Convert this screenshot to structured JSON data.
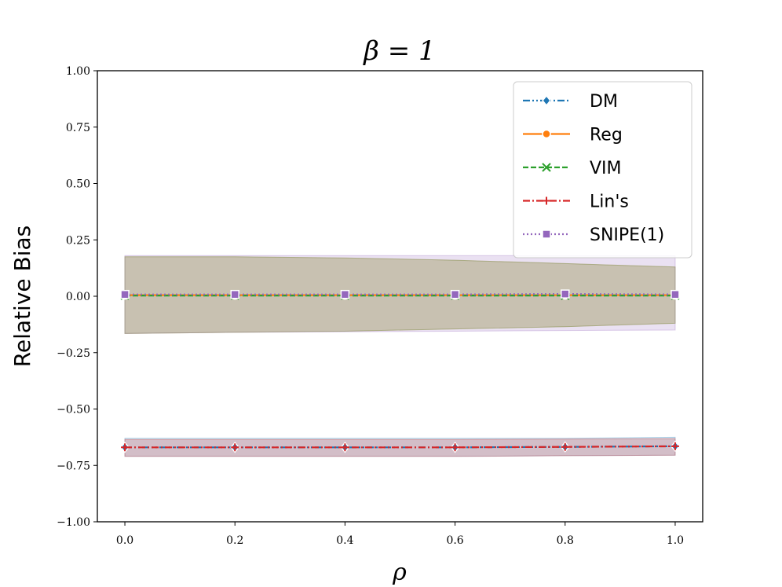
{
  "chart_data": {
    "type": "line",
    "title": "β = 1",
    "xlabel": "ρ",
    "ylabel": "Relative Bias",
    "xlim": [
      -0.05,
      1.05
    ],
    "ylim": [
      -1.0,
      1.0
    ],
    "xticks": [
      "0.0",
      "0.2",
      "0.4",
      "0.6",
      "0.8",
      "1.0"
    ],
    "yticks": [
      "−1.00",
      "−0.75",
      "−0.50",
      "−0.25",
      "0.00",
      "0.25",
      "0.50",
      "0.75",
      "1.00"
    ],
    "legend_position": "top-right",
    "x": [
      0.0,
      0.2,
      0.4,
      0.6,
      0.8,
      1.0
    ],
    "series": [
      {
        "name": "DM",
        "color": "#1f77b4",
        "marker": "diamond",
        "linestyle": "dashdotdot",
        "values": [
          -0.67,
          -0.67,
          -0.67,
          -0.67,
          -0.668,
          -0.665
        ],
        "band_lower": [
          -0.71,
          -0.71,
          -0.71,
          -0.71,
          -0.707,
          -0.705
        ],
        "band_upper": [
          -0.63,
          -0.63,
          -0.63,
          -0.63,
          -0.63,
          -0.625
        ]
      },
      {
        "name": "Reg",
        "color": "#ff7f0e",
        "marker": "circle",
        "linestyle": "solid",
        "values": [
          0.005,
          0.005,
          0.005,
          0.005,
          0.005,
          0.005
        ],
        "band_lower": [
          -0.165,
          -0.16,
          -0.155,
          -0.145,
          -0.135,
          -0.12
        ],
        "band_upper": [
          0.175,
          0.175,
          0.17,
          0.16,
          0.145,
          0.13
        ]
      },
      {
        "name": "VIM",
        "color": "#2ca02c",
        "marker": "x",
        "linestyle": "dashed",
        "values": [
          0.003,
          0.003,
          0.003,
          0.003,
          0.003,
          0.003
        ],
        "band_lower": [
          -0.165,
          -0.16,
          -0.155,
          -0.145,
          -0.135,
          -0.12
        ],
        "band_upper": [
          0.175,
          0.175,
          0.17,
          0.16,
          0.145,
          0.13
        ]
      },
      {
        "name": "Lin's",
        "color": "#d62728",
        "marker": "plus",
        "linestyle": "dashdot",
        "values": [
          -0.67,
          -0.67,
          -0.67,
          -0.67,
          -0.668,
          -0.665
        ],
        "band_lower": [
          -0.71,
          -0.71,
          -0.71,
          -0.71,
          -0.707,
          -0.705
        ],
        "band_upper": [
          -0.635,
          -0.635,
          -0.635,
          -0.635,
          -0.633,
          -0.632
        ]
      },
      {
        "name": "SNIPE(1)",
        "color": "#9467bd",
        "marker": "square",
        "linestyle": "dotted",
        "values": [
          0.008,
          0.008,
          0.008,
          0.008,
          0.01,
          0.008
        ],
        "band_lower": [
          -0.165,
          -0.16,
          -0.158,
          -0.155,
          -0.152,
          -0.15
        ],
        "band_upper": [
          0.18,
          0.18,
          0.18,
          0.18,
          0.18,
          0.18
        ]
      }
    ]
  }
}
